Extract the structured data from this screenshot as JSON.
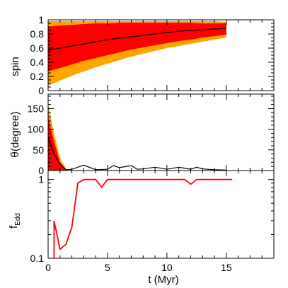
{
  "chart_data": [
    {
      "type": "area",
      "panel": "spin",
      "ylabel": "spin",
      "xlim": [
        0,
        19
      ],
      "ylim": [
        0,
        1
      ],
      "yticks": [
        "0",
        "0.2",
        "0.4",
        "0.6",
        "0.8",
        "1"
      ],
      "colors": {
        "outer_band": "#ffa500",
        "inner_band": "#ff0000",
        "median": "#000000"
      },
      "x": [
        0,
        1,
        2,
        3,
        4,
        5,
        6,
        7,
        8,
        9,
        10,
        11,
        12,
        13,
        14,
        15
      ],
      "series": [
        {
          "role": "outer_lower",
          "values": [
            0.07,
            0.14,
            0.21,
            0.27,
            0.33,
            0.38,
            0.43,
            0.48,
            0.52,
            0.56,
            0.6,
            0.63,
            0.66,
            0.69,
            0.72,
            0.75
          ]
        },
        {
          "role": "inner_lower",
          "values": [
            0.27,
            0.32,
            0.37,
            0.42,
            0.46,
            0.5,
            0.54,
            0.58,
            0.61,
            0.64,
            0.67,
            0.7,
            0.72,
            0.75,
            0.77,
            0.79
          ]
        },
        {
          "role": "median",
          "values": [
            0.57,
            0.6,
            0.63,
            0.66,
            0.69,
            0.72,
            0.74,
            0.76,
            0.78,
            0.8,
            0.82,
            0.84,
            0.85,
            0.86,
            0.87,
            0.88
          ]
        },
        {
          "role": "inner_upper",
          "values": [
            0.9,
            0.92,
            0.93,
            0.94,
            0.95,
            0.95,
            0.96,
            0.96,
            0.96,
            0.96,
            0.96,
            0.96,
            0.96,
            0.95,
            0.95,
            0.95
          ]
        },
        {
          "role": "outer_upper",
          "values": [
            0.98,
            0.98,
            0.98,
            0.98,
            0.98,
            0.98,
            0.98,
            0.98,
            0.98,
            0.98,
            0.98,
            0.98,
            0.98,
            0.98,
            0.98,
            0.97
          ]
        }
      ]
    },
    {
      "type": "area",
      "panel": "theta",
      "ylabel": "θ(degree)",
      "xlim": [
        0,
        19
      ],
      "ylim": [
        0,
        185
      ],
      "yticks": [
        "0",
        "50",
        "100",
        "150"
      ],
      "colors": {
        "outer_band": "#ffa500",
        "inner_band": "#ff0000",
        "median": "#000000"
      },
      "band_x": [
        0,
        0.5,
        1,
        1.5
      ],
      "outer_band": [
        [
          0,
          160
        ],
        [
          0,
          90
        ],
        [
          0,
          30
        ],
        [
          0,
          5
        ]
      ],
      "inner_band": [
        [
          0,
          130
        ],
        [
          0,
          70
        ],
        [
          0,
          20
        ],
        [
          0,
          3
        ]
      ],
      "median": {
        "x": [
          0,
          0.5,
          1,
          1.5,
          2,
          3,
          4,
          5,
          5.5,
          6,
          7,
          7.5,
          8,
          9,
          10,
          11,
          12,
          12.5,
          13,
          14,
          15
        ],
        "y": [
          80,
          40,
          15,
          2,
          3,
          13,
          2,
          3,
          12,
          7,
          12,
          3,
          4,
          8,
          3,
          8,
          3,
          8,
          4,
          2,
          1
        ]
      }
    },
    {
      "type": "line",
      "panel": "fEdd",
      "xlabel": "t (Myr)",
      "ylabel": "f",
      "ylabel_subscript": "Edd",
      "xlim": [
        0,
        19
      ],
      "ylim": [
        0.1,
        1.3
      ],
      "yscale": "log",
      "yticks": [
        "0.1",
        "1"
      ],
      "xticks": [
        "0",
        "5",
        "10",
        "15"
      ],
      "colors": {
        "line": "#ff0000"
      },
      "x": [
        0.5,
        0.5,
        1.0,
        1.5,
        2.0,
        2.5,
        3.0,
        4.0,
        4.5,
        5.0,
        6.0,
        7.0,
        8.0,
        9.0,
        10.0,
        11.0,
        11.5,
        12.0,
        12.5,
        13.0,
        14.0,
        15.0,
        15.5
      ],
      "y": [
        0.1,
        0.3,
        0.13,
        0.15,
        0.25,
        0.9,
        1.0,
        1.0,
        0.8,
        1.0,
        1.0,
        1.0,
        1.0,
        1.0,
        1.0,
        1.0,
        1.0,
        0.87,
        1.0,
        1.0,
        1.0,
        1.0,
        1.0
      ]
    }
  ]
}
